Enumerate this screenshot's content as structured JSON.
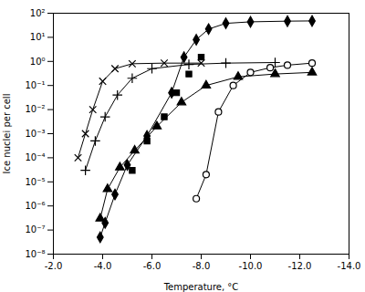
{
  "chart_data": {
    "type": "line",
    "xlabel": "Temperature, °C",
    "ylabel": "Ice nuclei per cell",
    "log": "y",
    "grid": false,
    "color": "#000000",
    "xlim": [
      -2.0,
      -14.0
    ],
    "xticks": [
      {
        "value": -2.0,
        "label": "-2.0"
      },
      {
        "value": -4.0,
        "label": "-4.0"
      },
      {
        "value": -6.0,
        "label": "-6.0"
      },
      {
        "value": -8.0,
        "label": "-8.0"
      },
      {
        "value": -10.0,
        "label": "-10.0"
      },
      {
        "value": -12.0,
        "label": "-12.0"
      },
      {
        "value": -14.0,
        "label": "-14.0"
      }
    ],
    "ylim": [
      1e-08,
      100.0
    ],
    "yticks": [
      {
        "value": 1e-08,
        "label": "10⁻⁸"
      },
      {
        "value": 1e-07,
        "label": "10⁻⁷"
      },
      {
        "value": 1e-06,
        "label": "10⁻⁶"
      },
      {
        "value": 1e-05,
        "label": "10⁻⁵"
      },
      {
        "value": 0.0001,
        "label": "10⁻⁴"
      },
      {
        "value": 0.001,
        "label": "10⁻³"
      },
      {
        "value": 0.01,
        "label": "10⁻²"
      },
      {
        "value": 0.1,
        "label": "10⁻¹"
      },
      {
        "value": 1,
        "label": "10⁰"
      },
      {
        "value": 10,
        "label": "10¹"
      },
      {
        "value": 100,
        "label": "10²"
      }
    ],
    "series": [
      {
        "marker": "x",
        "line_style": "solid",
        "x": [
          -3.0,
          -3.3,
          -3.6,
          -4.0,
          -4.5,
          -5.2,
          -6.5,
          -8.0
        ],
        "values": [
          0.0001,
          0.001,
          0.01,
          0.15,
          0.5,
          0.8,
          0.85,
          0.85
        ]
      },
      {
        "marker": "plus",
        "line_style": "solid",
        "x": [
          -3.3,
          -3.7,
          -4.1,
          -4.6,
          -5.2,
          -6.0,
          -7.5,
          -9.0,
          -11.0
        ],
        "values": [
          3e-05,
          0.0005,
          0.005,
          0.04,
          0.2,
          0.5,
          0.75,
          0.85,
          0.9
        ]
      },
      {
        "marker": "square",
        "line_style": "none",
        "x": [
          -5.2,
          -5.8,
          -6.5,
          -7.0,
          -7.5,
          -8.0
        ],
        "values": [
          3e-05,
          0.0005,
          0.005,
          0.05,
          0.3,
          1.5
        ]
      },
      {
        "marker": "triangle",
        "line_style": "solid",
        "x": [
          -3.9,
          -4.2,
          -4.7,
          -5.3,
          -6.2,
          -7.2,
          -8.2,
          -9.5,
          -11.0,
          -12.5
        ],
        "values": [
          3e-07,
          5e-06,
          4e-05,
          0.0002,
          0.002,
          0.02,
          0.1,
          0.23,
          0.3,
          0.35
        ]
      },
      {
        "marker": "diamond",
        "line_style": "solid",
        "x": [
          -3.9,
          -4.1,
          -4.5,
          -5.0,
          -5.8,
          -6.8,
          -7.3,
          -7.8,
          -8.3,
          -9.0,
          -10.0,
          -11.5,
          -12.5
        ],
        "values": [
          5e-08,
          2e-07,
          3e-06,
          5e-05,
          0.0008,
          0.05,
          1.5,
          8.0,
          22.0,
          38.0,
          44.0,
          47.0,
          48.0
        ]
      },
      {
        "marker": "circle",
        "line_style": "solid",
        "x": [
          -7.8,
          -8.2,
          -8.7,
          -9.3,
          -10.0,
          -10.8,
          -11.5,
          -12.5
        ],
        "values": [
          2e-06,
          2e-05,
          0.008,
          0.1,
          0.35,
          0.55,
          0.7,
          0.85
        ]
      }
    ]
  }
}
